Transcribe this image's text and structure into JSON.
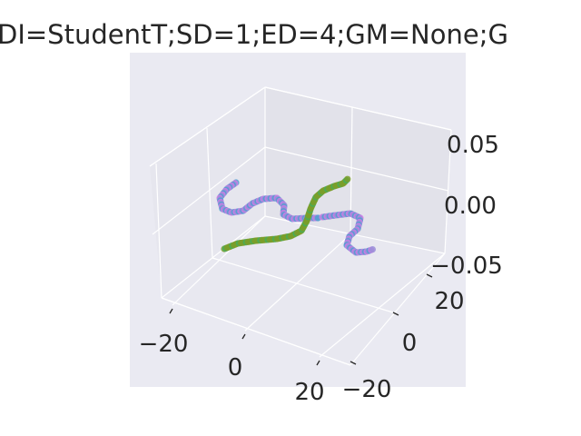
{
  "chart_data": {
    "type": "scatter",
    "projection": "3d",
    "title": "DI=StudentT;SD=1;ED=4;GM=None;G",
    "xlabel": "",
    "ylabel": "",
    "zlabel": "",
    "x_ticks": [
      "−20",
      "0",
      "20"
    ],
    "y_ticks": [
      "−20",
      "0",
      "20"
    ],
    "z_ticks": [
      "−0.05",
      "0.00",
      "0.05"
    ],
    "xlim": [
      -27,
      27
    ],
    "ylim": [
      -27,
      27
    ],
    "zlim": [
      -0.07,
      0.07
    ],
    "grid": true,
    "legend": "none",
    "colors": {
      "pane_bg": "#eaeaf2",
      "grid": "#ffffff",
      "text": "#262626",
      "series": [
        "#4c9fd0",
        "#d47ae6",
        "#7a9e2a",
        "#3fae60",
        "#9a8fd8"
      ]
    },
    "series": [
      {
        "points_screen_path": "sample",
        "x": [
          -12,
          -11,
          -10,
          -9,
          -8,
          -7,
          -5,
          -3,
          -1,
          1,
          3,
          5,
          6,
          7,
          8
        ],
        "y": [
          -22,
          -20,
          -18,
          -16,
          -15,
          -14,
          -13,
          -12,
          -11,
          -10,
          -9,
          -8,
          -6,
          -4,
          -2
        ],
        "z": [
          0,
          0,
          0,
          0,
          0,
          0,
          0,
          0,
          0,
          0,
          0,
          0,
          0,
          0,
          0
        ]
      }
    ]
  }
}
